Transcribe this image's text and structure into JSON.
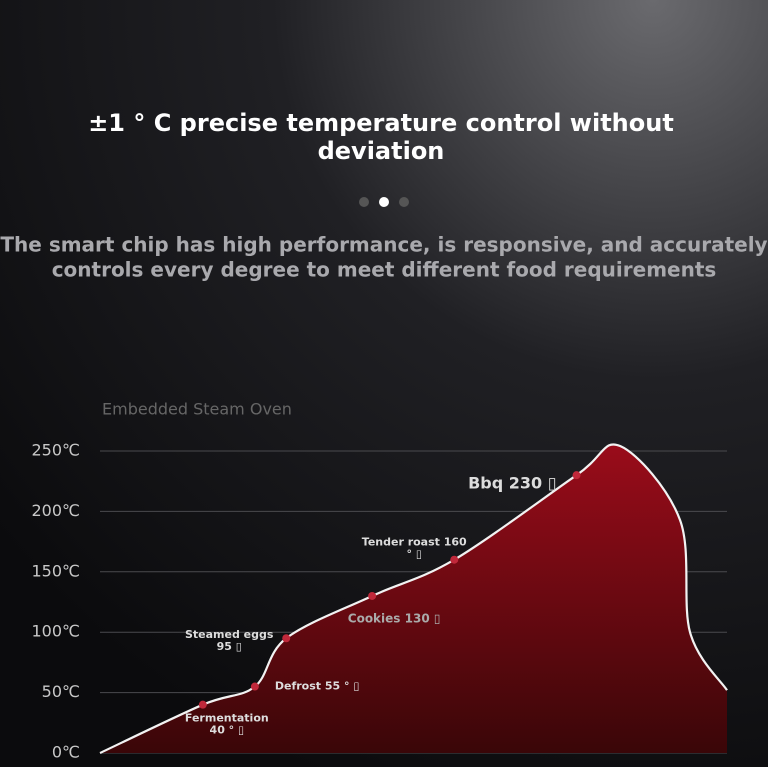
{
  "title": [
    "±1 ° C precise temperature control without",
    "deviation"
  ],
  "subtitle": [
    "The smart chip has high performance, is responsive, and accurately",
    "controls every degree to meet different food requirements"
  ],
  "chart_data": {
    "type": "area",
    "title": "Embedded Steam Oven",
    "yticks": [
      {
        "value": 0,
        "label": "0℃"
      },
      {
        "value": 50,
        "label": "50℃"
      },
      {
        "value": 100,
        "label": "100℃"
      },
      {
        "value": 150,
        "label": "150℃"
      },
      {
        "value": 200,
        "label": "200℃"
      },
      {
        "value": 250,
        "label": "250℃"
      }
    ],
    "ylim": [
      0,
      250
    ],
    "xlim": [
      0,
      100
    ],
    "grid": true,
    "color": "#8b0a16",
    "x": [
      0,
      16.4,
      24.7,
      29.7,
      43.4,
      56.5,
      76,
      83,
      92.5,
      94.1,
      100
    ],
    "values": [
      0,
      40,
      55,
      95,
      130,
      160,
      230,
      254,
      193,
      100,
      52
    ],
    "labels": [
      null,
      [
        "Fermentation",
        "40 ° ▯"
      ],
      [
        "Defrost 55 ° ▯"
      ],
      [
        "Steamed eggs",
        "95 ▯"
      ],
      [
        "Cookies 130 ▯"
      ],
      [
        "Tender roast 160",
        "° ▯"
      ],
      [
        "Bbq 230 ▯"
      ],
      null,
      null,
      null,
      null
    ]
  }
}
